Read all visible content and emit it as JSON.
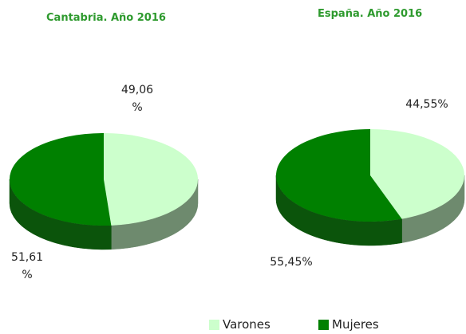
{
  "chart_data": [
    {
      "type": "pie",
      "title": "Cantabria. Año 2016",
      "values": [
        49.06,
        51.61
      ],
      "value_labels": [
        "49,06 %",
        "51,61 %"
      ]
    },
    {
      "type": "pie",
      "title": "España. Año 2016",
      "values": [
        44.55,
        55.45
      ],
      "value_labels": [
        "44,55%",
        "55,45%"
      ]
    }
  ],
  "legend": {
    "categories": [
      "Varones",
      "Mujeres"
    ],
    "colors": [
      "#ccffcc",
      "#008000"
    ],
    "side_colors": [
      "#6e8a6e",
      "#0b540b"
    ]
  }
}
